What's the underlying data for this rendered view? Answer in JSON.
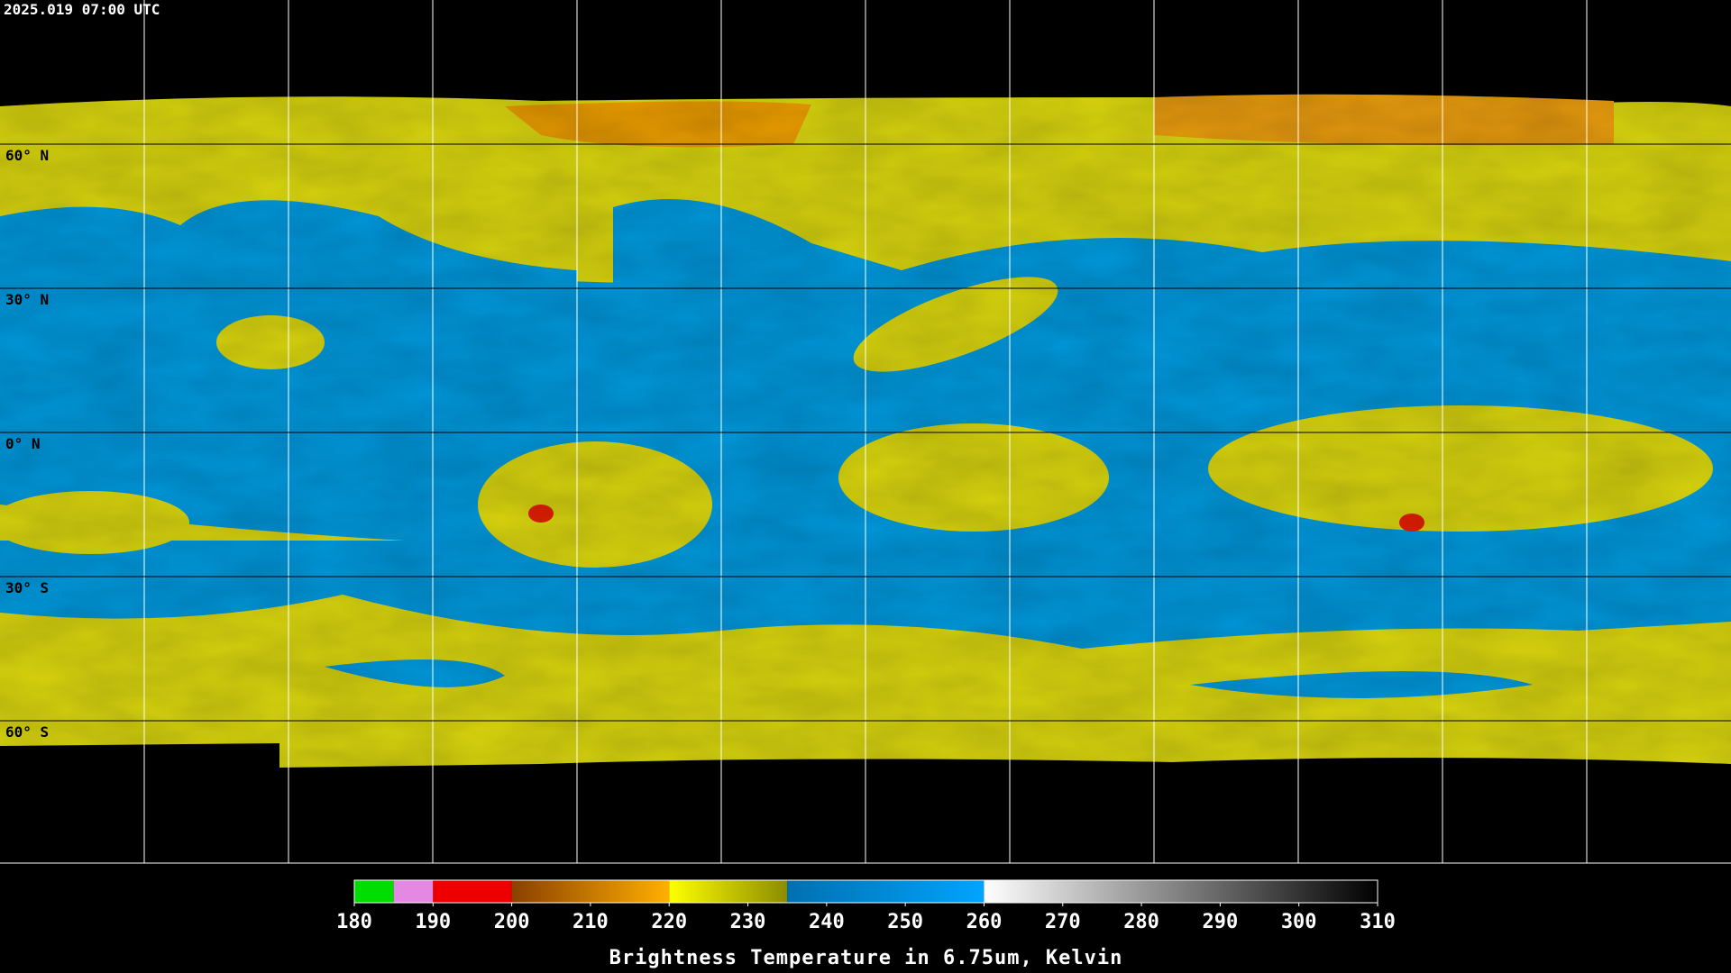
{
  "header": {
    "timestamp": "2025.019 07:00 UTC"
  },
  "lat_labels": [
    "60° N",
    "30° N",
    "0° N",
    "30° S",
    "60° S"
  ],
  "colorbar": {
    "title": "Brightness Temperature in 6.75um, Kelvin",
    "lim": [
      180,
      310
    ],
    "ticks": [
      180,
      190,
      200,
      210,
      220,
      230,
      240,
      250,
      260,
      270,
      280,
      290,
      300,
      310
    ],
    "segments": [
      {
        "from": 180,
        "to": 185,
        "colors": [
          "#00dd00",
          "#00dd00"
        ]
      },
      {
        "from": 185,
        "to": 190,
        "colors": [
          "#e488e4",
          "#e488e4"
        ]
      },
      {
        "from": 190,
        "to": 200,
        "colors": [
          "#ee0000",
          "#ee0000"
        ]
      },
      {
        "from": 200,
        "to": 220,
        "colors": [
          "#8a4000",
          "#ffb000"
        ]
      },
      {
        "from": 220,
        "to": 235,
        "colors": [
          "#ffff00",
          "#8c8c00"
        ]
      },
      {
        "from": 235,
        "to": 260,
        "colors": [
          "#0070b0",
          "#00a4ff"
        ]
      },
      {
        "from": 260,
        "to": 310,
        "colors": [
          "#ffffff",
          "#000000"
        ]
      }
    ]
  }
}
